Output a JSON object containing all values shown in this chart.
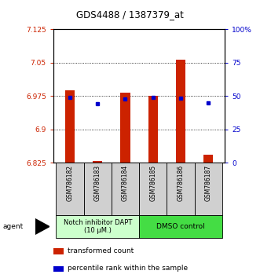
{
  "title": "GDS4488 / 1387379_at",
  "samples": [
    "GSM786182",
    "GSM786183",
    "GSM786184",
    "GSM786185",
    "GSM786186",
    "GSM786187"
  ],
  "bar_bottoms": [
    6.825,
    6.825,
    6.825,
    6.825,
    6.825,
    6.825
  ],
  "bar_tops": [
    6.988,
    6.828,
    6.982,
    6.975,
    7.057,
    6.843
  ],
  "percentile_values": [
    6.972,
    6.958,
    6.969,
    6.972,
    6.97,
    6.96
  ],
  "ylim_left": [
    6.825,
    7.125
  ],
  "ylim_right": [
    0,
    100
  ],
  "yticks_left": [
    6.825,
    6.9,
    6.975,
    7.05,
    7.125
  ],
  "ytick_labels_left": [
    "6.825",
    "6.9",
    "6.975",
    "7.05",
    "7.125"
  ],
  "yticks_right": [
    0,
    25,
    50,
    75,
    100
  ],
  "ytick_labels_right": [
    "0",
    "25",
    "50",
    "75",
    "100%"
  ],
  "hlines": [
    6.9,
    6.975,
    7.05
  ],
  "bar_color": "#cc2200",
  "percentile_color": "#0000cc",
  "group1_color": "#ccffcc",
  "group2_color": "#44dd44",
  "group1_label": "Notch inhibitor DAPT\n(10 μM.)",
  "group2_label": "DMSO control",
  "group1_samples": [
    0,
    1,
    2
  ],
  "group2_samples": [
    3,
    4,
    5
  ],
  "legend_bar_label": "transformed count",
  "legend_pct_label": "percentile rank within the sample",
  "agent_label": "agent",
  "bar_width": 0.35,
  "sample_cell_color": "#d0d0d0"
}
